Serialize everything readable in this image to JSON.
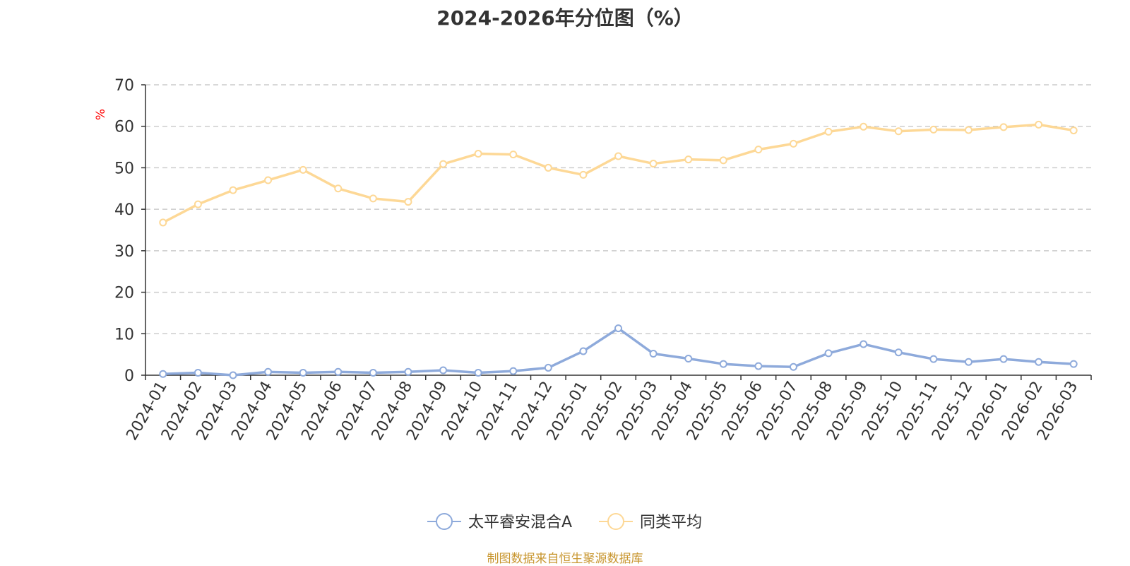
{
  "chart_data": {
    "type": "line",
    "title": "2024-2026年分位图（%）",
    "ylabel": "%",
    "ylim": [
      0,
      70
    ],
    "yticks": [
      "0",
      "10",
      "20",
      "30",
      "40",
      "50",
      "60",
      "70"
    ],
    "grid": true,
    "legend_position": "bottom",
    "categories": [
      "2024-01",
      "2024-02",
      "2024-03",
      "2024-04",
      "2024-05",
      "2024-06",
      "2024-07",
      "2024-08",
      "2024-09",
      "2024-10",
      "2024-11",
      "2024-12",
      "2025-01",
      "2025-02",
      "2025-03",
      "2025-04",
      "2025-05",
      "2025-06",
      "2025-07",
      "2025-08",
      "2025-09",
      "2025-10",
      "2025-11",
      "2025-12",
      "2026-01",
      "2026-02",
      "2026-03"
    ],
    "series": [
      {
        "name": "太平睿安混合A",
        "color": "#8eaadb",
        "values": [
          0.3,
          0.6,
          0.0,
          0.8,
          0.6,
          0.8,
          0.6,
          0.8,
          1.2,
          0.6,
          1.0,
          1.8,
          5.8,
          11.3,
          5.2,
          4.0,
          2.7,
          2.2,
          2.0,
          5.3,
          7.5,
          5.5,
          3.9,
          3.2,
          3.9,
          3.2,
          2.7
        ]
      },
      {
        "name": "同类平均",
        "color": "#fdd896",
        "values": [
          36.8,
          41.2,
          44.6,
          47.0,
          49.5,
          45.0,
          42.6,
          41.8,
          50.9,
          53.4,
          53.2,
          50.0,
          48.3,
          52.8,
          51.0,
          52.0,
          51.8,
          54.4,
          55.8,
          58.7,
          59.9,
          58.8,
          59.2,
          59.1,
          59.8,
          60.4,
          59.0
        ]
      }
    ]
  },
  "source_text": "制图数据来自恒生聚源数据库",
  "colors": {
    "source_text": "#c8962f",
    "ylabel": "#ff0000",
    "grid": "#cccccc",
    "axis": "#333333"
  }
}
